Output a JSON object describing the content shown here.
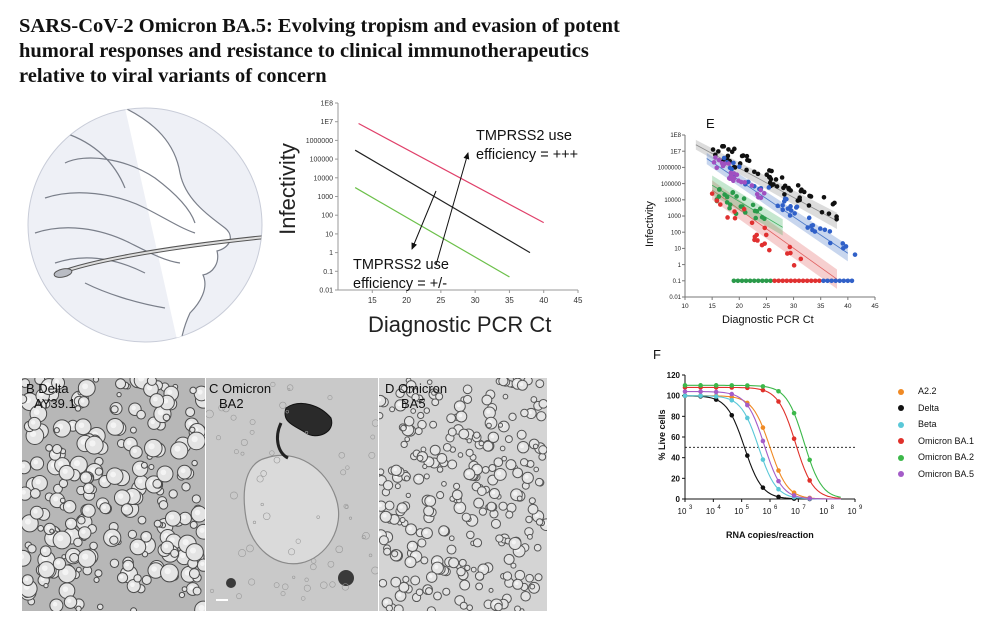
{
  "title_lines": [
    "SARS-CoV-2 Omicron BA.5: Evolving tropism and evasion of potent",
    "humoral responses and resistance to clinical immunotherapeutics",
    "relative to viral variants of concern"
  ],
  "panelA": {
    "y_axis_label": "Infectivity",
    "x_axis_label": "Diagnostic PCR Ct",
    "y_ticks": [
      "1E8",
      "1E7",
      "1000000",
      "100000",
      "10000",
      "1000",
      "100",
      "10",
      "1",
      "0.1",
      "0.01"
    ],
    "x_ticks": [
      "15",
      "20",
      "25",
      "30",
      "35",
      "40",
      "45"
    ],
    "annot_up_line1": "TMPRSS2 use",
    "annot_up_line2": "efficiency = +++",
    "annot_down_line1": "TMPRSS2 use",
    "annot_down_line2": "efficiency = +/-",
    "colors": {
      "high": "#e0406a",
      "mid": "#222222",
      "low": "#6cc04a"
    }
  },
  "panelE": {
    "letter": "E",
    "y_axis_label": "Infectivity",
    "x_axis_label": "Diagnostic PCR Ct",
    "y_ticks": [
      "1E8",
      "1E7",
      "1000000",
      "100000",
      "10000",
      "1000",
      "100",
      "10",
      "1",
      "0.1",
      "0.01"
    ],
    "x_ticks": [
      "10",
      "15",
      "20",
      "25",
      "30",
      "35",
      "40",
      "45"
    ]
  },
  "panelF": {
    "letter": "F",
    "y_axis_label": "% Live cells",
    "x_axis_label": "RNA copies/reaction",
    "y_ticks": [
      "0",
      "20",
      "40",
      "60",
      "80",
      "100",
      "120"
    ],
    "x_ticks": [
      {
        "base": "10",
        "exp": "3"
      },
      {
        "base": "10",
        "exp": "4"
      },
      {
        "base": "10",
        "exp": "5"
      },
      {
        "base": "10",
        "exp": "6"
      },
      {
        "base": "10",
        "exp": "7"
      },
      {
        "base": "10",
        "exp": "8"
      },
      {
        "base": "10",
        "exp": "9"
      }
    ],
    "legend": [
      {
        "name": "A2.2",
        "color": "#f08a24"
      },
      {
        "name": "Delta",
        "color": "#111111"
      },
      {
        "name": "Beta",
        "color": "#5ac8d8"
      },
      {
        "name": "Omicron BA.1",
        "color": "#e0302a"
      },
      {
        "name": "Omicron BA.2",
        "color": "#3cb84a"
      },
      {
        "name": "Omicron BA.5",
        "color": "#a45cc8"
      }
    ]
  },
  "micrographs": [
    {
      "line1": "B Delta",
      "line2": "AY39.1"
    },
    {
      "line1": "C Omicron",
      "line2": "BA2"
    },
    {
      "line1": "D Omicron",
      "line2": "BA5"
    }
  ],
  "chart_data": [
    {
      "type": "line",
      "xlabel": "Diagnostic PCR Ct",
      "ylabel": "Infectivity",
      "xlim": [
        10,
        45
      ],
      "ylim": [
        "0.01",
        "1E8"
      ],
      "yscale": "log",
      "series": [
        {
          "x": [
            13,
            40
          ],
          "y": [
            8000000,
            40
          ]
        },
        {
          "x": [
            12.5,
            38
          ],
          "y": [
            300000,
            1
          ]
        },
        {
          "x": [
            12.5,
            35
          ],
          "y": [
            3000,
            0.05
          ]
        }
      ]
    },
    {
      "type": "scatter",
      "xlabel": "Diagnostic PCR Ct",
      "ylabel": "Infectivity",
      "xlim": [
        10,
        45
      ],
      "ylim": [
        "0.01",
        "1E8"
      ],
      "yscale": "log"
    },
    {
      "type": "line",
      "xlabel": "RNA copies/reaction",
      "ylabel": "% Live cells",
      "xscale": "log",
      "xlim": [
        1000,
        1000000000
      ],
      "ylim": [
        0,
        120
      ],
      "reference_line_y": 50,
      "series": [
        {
          "name": "A2.2",
          "ic50_log10": 6.0
        },
        {
          "name": "Delta",
          "ic50_log10": 5.1
        },
        {
          "name": "Beta",
          "ic50_log10": 5.6
        },
        {
          "name": "Omicron BA.1",
          "ic50_log10": 6.9
        },
        {
          "name": "Omicron BA.2",
          "ic50_log10": 7.2
        },
        {
          "name": "Omicron BA.5",
          "ic50_log10": 5.8
        }
      ]
    }
  ]
}
